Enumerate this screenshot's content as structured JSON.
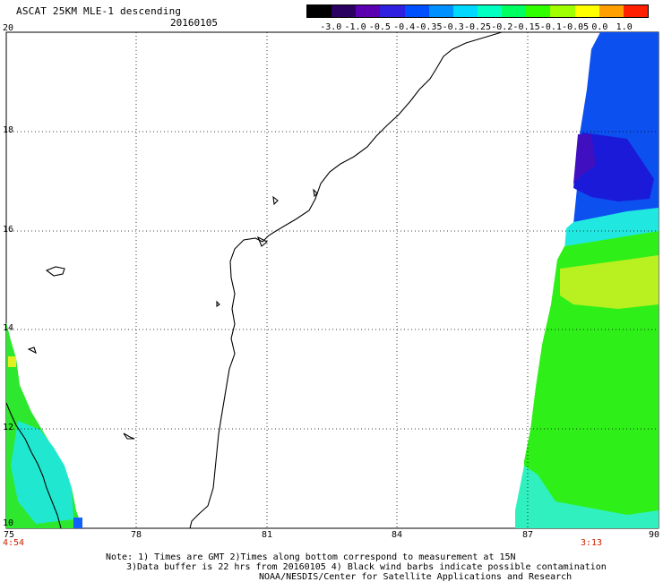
{
  "header": {
    "title": "ASCAT 25KM MLE-1 descending",
    "date": "20160105"
  },
  "colorbar": {
    "ticks": [
      "-3.0",
      "-1.0",
      "-0.5",
      "-0.4",
      "-0.35",
      "-0.3",
      "-0.25",
      "-0.2",
      "-0.15",
      "-0.1",
      "-0.05",
      "0.0",
      "1.0"
    ],
    "colors": [
      "#000000",
      "#2a0060",
      "#5a00b0",
      "#3020e0",
      "#0050ff",
      "#0090ff",
      "#00d8ff",
      "#00ffc0",
      "#00ff60",
      "#30ff00",
      "#a0ff00",
      "#ffff00",
      "#ffa000",
      "#ff2000"
    ]
  },
  "axes": {
    "y_labels": [
      "20",
      "18",
      "16",
      "14",
      "12",
      "10"
    ],
    "x_labels": [
      "75",
      "78",
      "81",
      "84",
      "87",
      "90"
    ]
  },
  "time_labels": {
    "left": "4:54",
    "right": "3:13"
  },
  "notes": {
    "line1": "Note: 1) Times are GMT 2)Times along bottom correspond to measurement at 15N",
    "line2": "3)Data buffer is 22 hrs from 20160105 4) Black wind barbs indicate possible contamination",
    "line3": "NOAA/NESDIS/Center for Satellite Applications and Research"
  }
}
